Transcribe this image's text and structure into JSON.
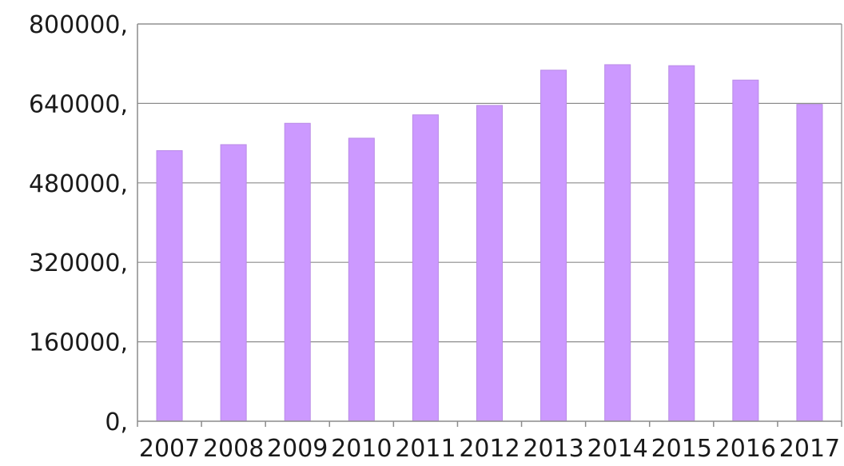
{
  "chart_data": {
    "type": "bar",
    "title": "",
    "xlabel": "",
    "ylabel": "",
    "categories": [
      "2007",
      "2008",
      "2009",
      "2010",
      "2011",
      "2012",
      "2013",
      "2014",
      "2015",
      "2016",
      "2017"
    ],
    "values": [
      545000,
      557000,
      600000,
      570000,
      617000,
      636000,
      707000,
      718000,
      716000,
      687000,
      638000
    ],
    "ylim": [
      0,
      800000
    ],
    "yticks": [
      0,
      160000,
      320000,
      480000,
      640000,
      800000
    ],
    "ytick_labels": [
      "0,",
      "160000,",
      "320000,",
      "480000,",
      "640000,",
      "800000,"
    ],
    "grid": true,
    "legend": "none",
    "colors": {
      "bar": "#cc99ff",
      "bar_edge": "#b98be6",
      "grid": "#8c8c8c"
    }
  }
}
